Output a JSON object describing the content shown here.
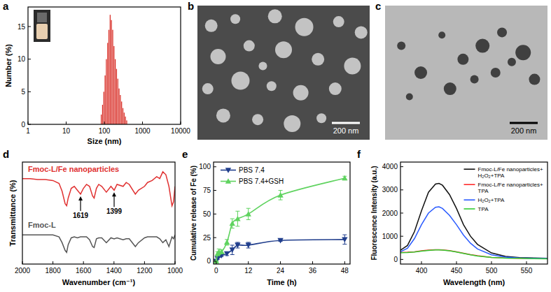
{
  "chart_data": [
    {
      "type": "histogram",
      "panel_label": "a",
      "x_label": "Size (nm)",
      "y_label": "Number (%)",
      "bins": [
        80,
        86.4,
        93.3,
        100.7,
        108.8,
        117.5,
        126.8,
        137.0,
        147.9,
        159.7,
        172.5,
        186.2,
        201.1,
        217.2,
        234.5,
        253.3,
        273.5,
        295.3,
        318.9,
        344.4,
        371.9,
        401.6
      ],
      "values": [
        1.5,
        3,
        5,
        7.5,
        10,
        12.5,
        14.5,
        16.8,
        16,
        14.5,
        12,
        10,
        8.5,
        7,
        5.5,
        4.5,
        3.5,
        2.5,
        1.8,
        1.2,
        0.6
      ],
      "color": "#d7261e",
      "log": "x",
      "xlim": [
        1,
        10000
      ],
      "xticks": [
        1,
        10,
        100,
        1000,
        10000
      ],
      "ylim": [
        0,
        18
      ],
      "yticks": [
        0,
        5,
        10,
        15
      ]
    },
    {
      "type": "image",
      "panel_label": "b",
      "annotations": [
        {
          "text": "200 nm"
        }
      ]
    },
    {
      "type": "image",
      "panel_label": "c",
      "annotations": [
        {
          "text": "200 nm"
        }
      ]
    },
    {
      "type": "line",
      "panel_label": "d",
      "x_label": "Wavenumber (cm⁻¹)",
      "y_label": "Transmittance (%)",
      "x": [
        2000,
        1950,
        1900,
        1850,
        1800,
        1760,
        1740,
        1720,
        1710,
        1700,
        1680,
        1660,
        1640,
        1619,
        1600,
        1580,
        1560,
        1540,
        1530,
        1515,
        1500,
        1480,
        1450,
        1420,
        1399,
        1380,
        1340,
        1320,
        1300,
        1260,
        1240,
        1200,
        1180,
        1150,
        1120,
        1100,
        1080,
        1060,
        1040,
        1020,
        1010,
        1000
      ],
      "series": [
        {
          "name": "Fmoc-L/Fe nanoparticles",
          "color": "#e03131",
          "values": [
            88,
            88,
            87,
            87,
            86,
            83,
            75,
            62,
            60,
            68,
            78,
            80,
            76,
            72,
            78,
            82,
            80,
            70,
            68,
            78,
            82,
            80,
            74,
            80,
            76,
            82,
            80,
            84,
            82,
            72,
            76,
            80,
            84,
            86,
            90,
            88,
            95,
            92,
            80,
            60,
            64,
            80
          ]
        },
        {
          "name": "Fmoc-L",
          "color": "#555555",
          "values": [
            30,
            30,
            30,
            30,
            30,
            28,
            22,
            14,
            12,
            20,
            27,
            28,
            27,
            28,
            28,
            28,
            25,
            18,
            17,
            26,
            27,
            27,
            22,
            27,
            26,
            27,
            25,
            26,
            26,
            18,
            22,
            27,
            28,
            28,
            28,
            26,
            22,
            25,
            18,
            28,
            26,
            30
          ]
        }
      ],
      "xlim": [
        2000,
        1000
      ],
      "xticks": [
        2000,
        1800,
        1600,
        1400,
        1200,
        1000
      ],
      "ylim": [
        0,
        105
      ],
      "tick_labels": "x",
      "annotations": [
        {
          "text": "1619",
          "x": 1619,
          "y": 72
        },
        {
          "text": "1399",
          "x": 1399,
          "y": 76
        }
      ]
    },
    {
      "type": "scatter",
      "panel_label": "e",
      "x_label": "Time (h)",
      "y_label": "Cumulative release of Fe (%)",
      "x": [
        0,
        0.5,
        1,
        2,
        4,
        6,
        8,
        12,
        24,
        48
      ],
      "series": [
        {
          "name": "PBS 7.4",
          "color": "#1f3d8c",
          "marker": "triangle-down",
          "line_style": "smooth",
          "values": [
            0,
            3,
            5,
            6,
            8,
            12,
            17,
            17,
            22,
            23
          ],
          "errors": [
            0,
            1,
            1,
            1,
            2,
            5,
            3,
            3,
            1,
            5
          ]
        },
        {
          "name": "PBS 7.4+GSH",
          "color": "#5fd35f",
          "marker": "triangle-up",
          "line_style": "smooth",
          "values": [
            0,
            8,
            10,
            10,
            20,
            40,
            45,
            50,
            70,
            88
          ],
          "errors": [
            0,
            2,
            3,
            2,
            3,
            5,
            8,
            6,
            5,
            2
          ]
        }
      ],
      "xlim": [
        -1,
        50
      ],
      "xticks": [
        0,
        12,
        24,
        36,
        48
      ],
      "ylim": [
        -3,
        105
      ],
      "yticks": [
        0,
        25,
        50,
        75,
        100
      ],
      "legend": "upper left"
    },
    {
      "type": "line",
      "panel_label": "f",
      "x_label": "Wavelength (nm)",
      "y_label": "Fluorescence Intensity (a.u.)",
      "x": [
        370,
        380,
        390,
        400,
        410,
        420,
        425,
        430,
        440,
        450,
        460,
        470,
        480,
        500,
        520,
        540,
        560,
        580
      ],
      "series": [
        {
          "name": "Fmoc-L/Fe nanoparticles+\nH₂O₂+TPA",
          "color": "#111111",
          "values": [
            400,
            600,
            1200,
            2100,
            2900,
            3250,
            3280,
            3200,
            2800,
            2200,
            1500,
            1000,
            650,
            280,
            130,
            80,
            60,
            50
          ]
        },
        {
          "name": "Fmoc-L/Fe nanoparticles+\nTPA",
          "color": "#ff2a2a",
          "values": [
            300,
            310,
            330,
            370,
            400,
            420,
            420,
            410,
            380,
            330,
            270,
            210,
            160,
            90,
            60,
            50,
            40,
            30
          ]
        },
        {
          "name": "H₂O₂+TPA",
          "color": "#2a5bff",
          "values": [
            330,
            480,
            900,
            1500,
            2000,
            2250,
            2270,
            2200,
            1900,
            1500,
            1050,
            700,
            450,
            200,
            100,
            60,
            50,
            40
          ]
        },
        {
          "name": "TPA",
          "color": "#33cc33",
          "values": [
            290,
            300,
            320,
            360,
            390,
            410,
            410,
            400,
            370,
            320,
            260,
            200,
            150,
            85,
            55,
            45,
            35,
            28
          ]
        }
      ],
      "xlim": [
        370,
        580
      ],
      "xticks": [
        400,
        450,
        500,
        550
      ],
      "ylim": [
        -200,
        4200
      ],
      "yticks": [
        0,
        1000,
        2000,
        3000,
        4000
      ],
      "legend": "upper right"
    }
  ]
}
